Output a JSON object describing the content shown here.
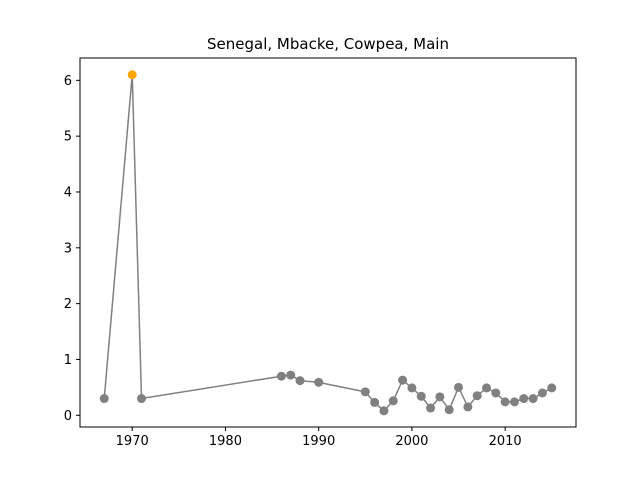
{
  "chart_data": {
    "type": "line",
    "title": "Senegal, Mbacke, Cowpea, Main",
    "xlabel": "",
    "ylabel": "",
    "xlim": [
      1964.4,
      2017.6
    ],
    "ylim": [
      -0.21,
      6.4
    ],
    "x_ticks": [
      1970,
      1980,
      1990,
      2000,
      2010
    ],
    "y_ticks": [
      0,
      1,
      2,
      3,
      4,
      5,
      6
    ],
    "grid": false,
    "line_color": "#808080",
    "marker_color": "#808080",
    "highlight_color": "#FFA500",
    "highlight_x": [
      1970
    ],
    "series": [
      {
        "x": [
          1967,
          1970,
          1971,
          1986,
          1987,
          1988,
          1990,
          1995,
          1996,
          1997,
          1998,
          1999,
          2000,
          2001,
          2002,
          2003,
          2004,
          2005,
          2006,
          2007,
          2008,
          2009,
          2010,
          2011,
          2012,
          2013,
          2014,
          2015
        ],
        "y": [
          0.3,
          6.1,
          0.3,
          0.7,
          0.72,
          0.62,
          0.59,
          0.42,
          0.23,
          0.08,
          0.26,
          0.63,
          0.49,
          0.34,
          0.13,
          0.33,
          0.1,
          0.5,
          0.15,
          0.35,
          0.49,
          0.4,
          0.24,
          0.24,
          0.3,
          0.3,
          0.4,
          0.49
        ]
      }
    ]
  }
}
